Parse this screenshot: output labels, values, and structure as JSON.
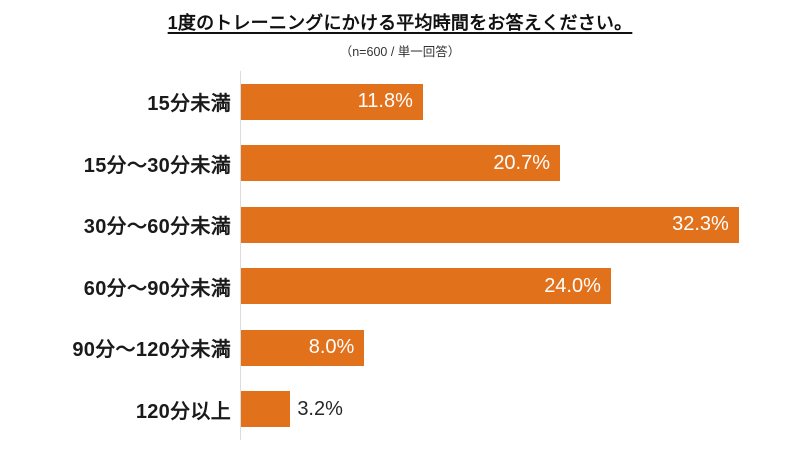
{
  "header": {
    "title": "1度のトレーニングにかける平均時間をお答えください。",
    "subtitle": "（n=600 / 単一回答）"
  },
  "chart_data": {
    "type": "bar",
    "orientation": "horizontal",
    "title": "1度のトレーニングにかける平均時間をお答えください。",
    "subtitle": "（n=600 / 単一回答）",
    "categories": [
      "15分未満",
      "15分～30分未満",
      "30分～60分未満",
      "60分～90分未満",
      "90分～120分未満",
      "120分以上"
    ],
    "values": [
      11.8,
      20.7,
      32.3,
      24.0,
      8.0,
      3.2
    ],
    "value_labels": [
      "11.8%",
      "20.7%",
      "32.3%",
      "24.0%",
      "8.0%",
      "3.2%"
    ],
    "value_label_positions": [
      "inside",
      "inside",
      "inside",
      "inside",
      "inside",
      "outside"
    ],
    "xlabel": "",
    "ylabel": "",
    "xlim": [
      0,
      32.7
    ],
    "grid": false,
    "legend": false,
    "bar_color": "#E2711C",
    "axis_line_color": "#DCDCDC",
    "value_label_inside_color": "#FFFFFF",
    "value_label_outside_color": "#262626",
    "category_label_color": "#1A1A1A"
  }
}
